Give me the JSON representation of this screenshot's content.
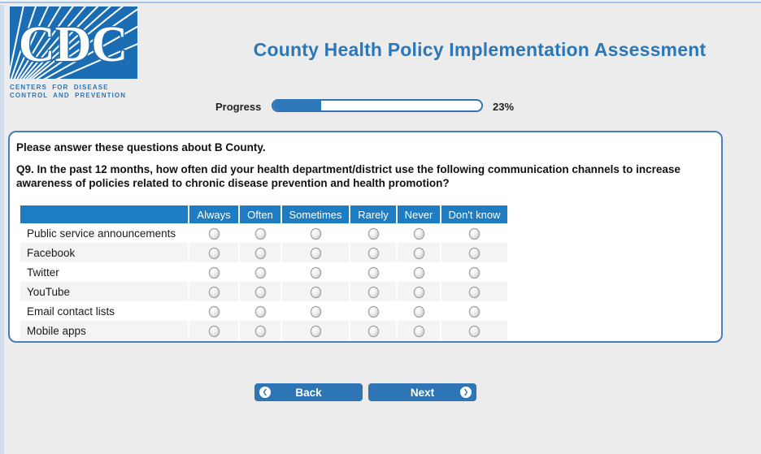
{
  "page": {
    "title": "County Health Policy Implementation Assessment"
  },
  "logo": {
    "acronym": "CDC",
    "line1": "CENTERS FOR DISEASE",
    "line2": "CONTROL AND PREVENTION"
  },
  "progress": {
    "label": "Progress",
    "percent": 23,
    "percent_label": "23%"
  },
  "panel": {
    "intro": "Please answer these questions about B County.",
    "question_number": "Q9.",
    "question_text": "In the past 12 months, how often did your health department/district use the following communication channels to increase awareness of policies related to chronic disease prevention and health promotion?"
  },
  "table": {
    "columns": [
      "Always",
      "Often",
      "Sometimes",
      "Rarely",
      "Never",
      "Don't know"
    ],
    "rows": [
      "Public service announcements",
      "Facebook",
      "Twitter",
      "YouTube",
      "Email contact lists",
      "Mobile apps"
    ],
    "selected": null
  },
  "buttons": {
    "back": "Back",
    "next": "Next"
  },
  "icons": {
    "back_arrow": "❮",
    "next_arrow": "❯"
  },
  "colors": {
    "accent_blue": "#2e75b5",
    "table_header_blue": "#1e7dc2",
    "title_blue": "#2d76b8",
    "panel_border_blue": "#4a7ebb",
    "logo_blue": "#1a6cb3",
    "alt_row_gray": "#f4f4f5",
    "page_bg": "#ececec",
    "progress_fill": "#2e77b8"
  }
}
